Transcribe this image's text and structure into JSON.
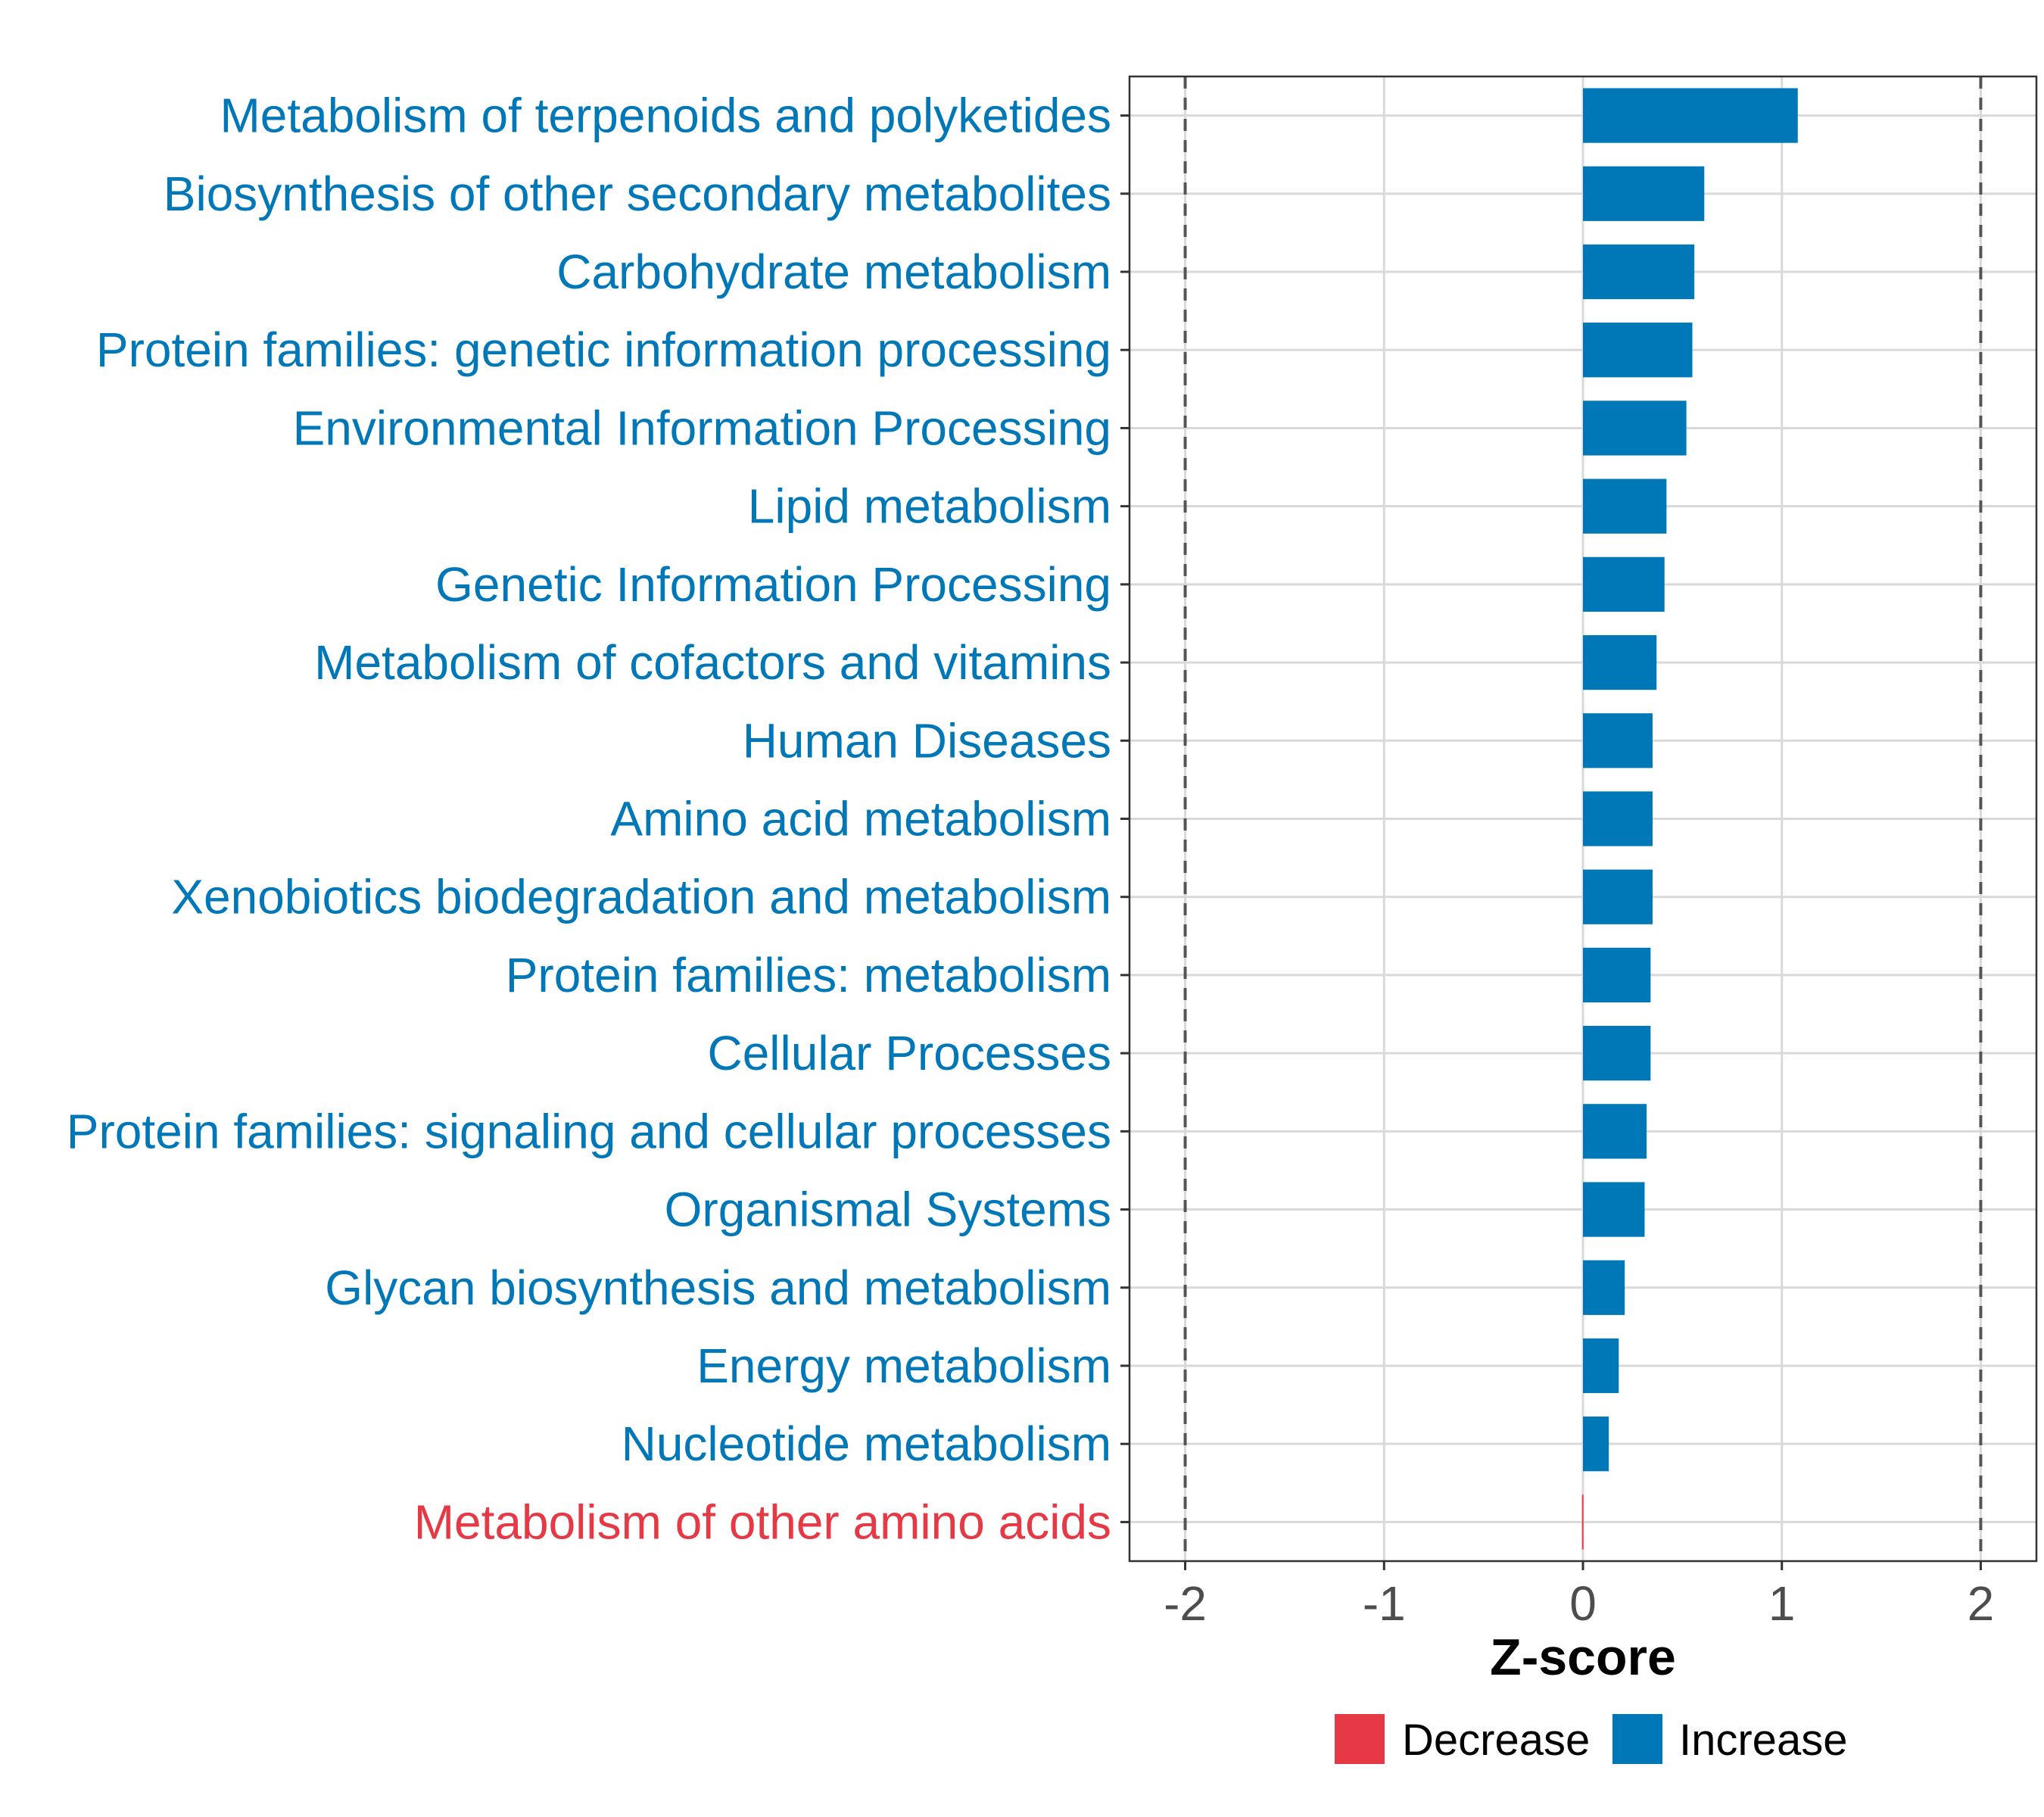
{
  "chart_data": {
    "type": "bar",
    "orientation": "horizontal",
    "title": "",
    "xlabel": "Z-score",
    "ylabel": "",
    "xlim": [
      -2.28,
      2.28
    ],
    "xticks": [
      -2,
      -1,
      0,
      1,
      2
    ],
    "xtick_labels": [
      "-2",
      "-1",
      "0",
      "1",
      "2"
    ],
    "reference_lines": [
      -2,
      2
    ],
    "grid": true,
    "categories": [
      "Metabolism of terpenoids and polyketides",
      "Biosynthesis of other secondary metabolites",
      "Carbohydrate metabolism",
      "Protein families: genetic information processing",
      "Environmental Information Processing",
      "Lipid metabolism",
      "Genetic Information Processing",
      "Metabolism of cofactors and vitamins",
      "Human Diseases",
      "Amino acid metabolism",
      "Xenobiotics biodegradation and metabolism",
      "Protein families: metabolism",
      "Cellular Processes",
      "Protein families: signaling and cellular processes",
      "Organismal Systems",
      "Glycan biosynthesis and metabolism",
      "Energy metabolism",
      "Nucleotide metabolism",
      "Metabolism of other amino acids"
    ],
    "values": [
      1.08,
      0.61,
      0.56,
      0.55,
      0.52,
      0.42,
      0.41,
      0.37,
      0.35,
      0.35,
      0.35,
      0.34,
      0.34,
      0.32,
      0.31,
      0.21,
      0.18,
      0.13,
      -0.005
    ],
    "groups": [
      "Increase",
      "Increase",
      "Increase",
      "Increase",
      "Increase",
      "Increase",
      "Increase",
      "Increase",
      "Increase",
      "Increase",
      "Increase",
      "Increase",
      "Increase",
      "Increase",
      "Increase",
      "Increase",
      "Increase",
      "Increase",
      "Decrease"
    ],
    "legend": {
      "position": "bottom",
      "entries": [
        {
          "label": "Decrease",
          "color": "#E63946"
        },
        {
          "label": "Increase",
          "color": "#0077B6"
        }
      ]
    },
    "colors": {
      "Increase": "#0077B6",
      "Decrease": "#E63946",
      "grid": "#D9D9D9",
      "reference_line": "#555555",
      "panel_border": "#333333",
      "tick_text": "#4D4D4D"
    }
  }
}
